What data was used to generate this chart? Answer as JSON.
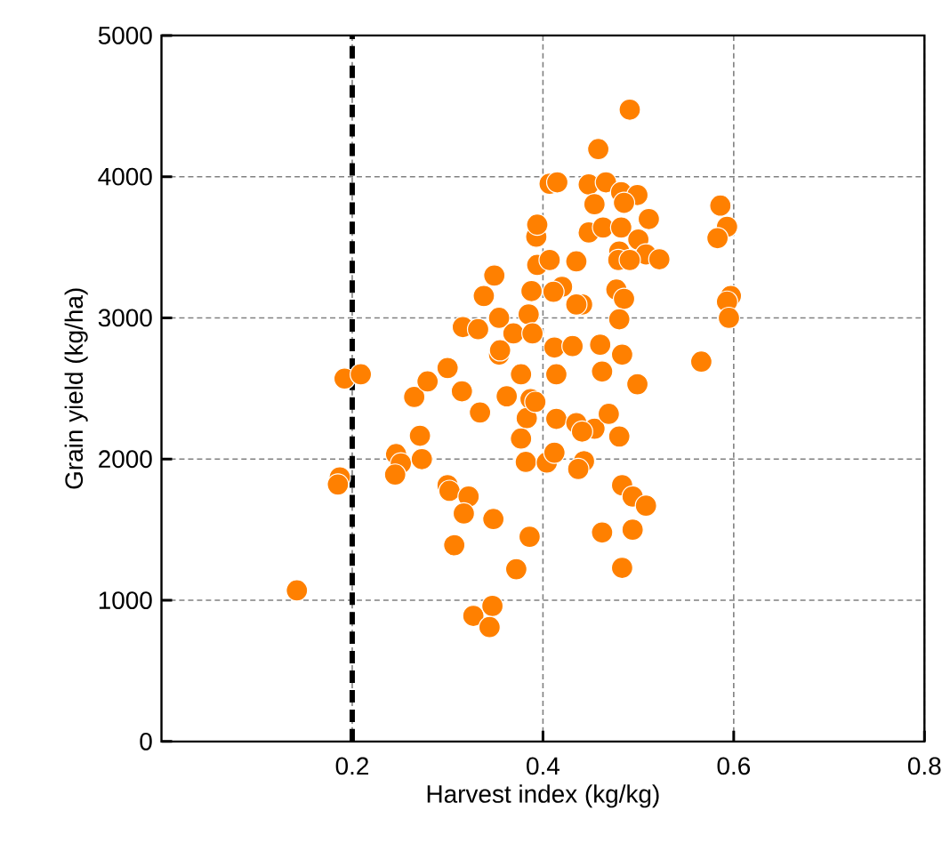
{
  "chart_data": {
    "type": "scatter",
    "xlabel": "Harvest index (kg/kg)",
    "ylabel": "Grain yield (kg/ha)",
    "xlim": [
      0,
      0.8
    ],
    "ylim": [
      0,
      5000
    ],
    "xticks": [
      0.2,
      0.4,
      0.6,
      0.8
    ],
    "yticks": [
      0,
      1000,
      2000,
      3000,
      4000,
      5000
    ],
    "grid": true,
    "marker": "circle",
    "ref_lines": [
      {
        "axis": "x",
        "value": 0.2,
        "color": "#000000",
        "line_style": "dashed"
      }
    ],
    "series": [
      {
        "color": "#ff8000",
        "x": [
          0.142,
          0.187,
          0.185,
          0.192,
          0.209,
          0.246,
          0.251,
          0.245,
          0.271,
          0.273,
          0.265,
          0.279,
          0.3,
          0.315,
          0.334,
          0.3,
          0.302,
          0.322,
          0.317,
          0.348,
          0.307,
          0.386,
          0.372,
          0.327,
          0.347,
          0.344,
          0.362,
          0.377,
          0.387,
          0.383,
          0.377,
          0.382,
          0.404,
          0.354,
          0.349,
          0.338,
          0.316,
          0.332,
          0.354,
          0.355,
          0.369,
          0.385,
          0.389,
          0.388,
          0.394,
          0.393,
          0.394,
          0.407,
          0.491,
          0.458,
          0.415,
          0.448,
          0.466,
          0.454,
          0.482,
          0.499,
          0.485,
          0.511,
          0.448,
          0.463,
          0.482,
          0.5,
          0.48,
          0.479,
          0.508,
          0.522,
          0.491,
          0.435,
          0.407,
          0.586,
          0.593,
          0.583,
          0.597,
          0.593,
          0.595,
          0.477,
          0.485,
          0.48,
          0.441,
          0.435,
          0.42,
          0.411,
          0.566,
          0.412,
          0.431,
          0.46,
          0.483,
          0.414,
          0.462,
          0.499,
          0.414,
          0.435,
          0.454,
          0.469,
          0.48,
          0.441,
          0.392,
          0.412,
          0.443,
          0.437,
          0.483,
          0.494,
          0.508,
          0.462,
          0.494,
          0.483
        ],
        "values": [
          1070,
          1870,
          1820,
          2570,
          2600,
          2035,
          1970,
          1890,
          2165,
          2000,
          2440,
          2550,
          2645,
          2480,
          2330,
          1815,
          1775,
          1735,
          1615,
          1575,
          1390,
          1450,
          1220,
          890,
          960,
          810,
          2445,
          2600,
          2425,
          2290,
          2145,
          1980,
          1975,
          2740,
          3300,
          3155,
          2935,
          2920,
          3000,
          2770,
          2890,
          3025,
          2890,
          3190,
          3375,
          3575,
          3660,
          3950,
          4475,
          4195,
          3960,
          3945,
          3960,
          3805,
          3890,
          3870,
          3815,
          3700,
          3605,
          3640,
          3640,
          3555,
          3470,
          3410,
          3450,
          3415,
          3410,
          3400,
          3410,
          3795,
          3645,
          3565,
          3155,
          3115,
          3000,
          3200,
          3135,
          2990,
          3095,
          3095,
          3220,
          3185,
          2690,
          2790,
          2800,
          2810,
          2740,
          2600,
          2620,
          2530,
          2285,
          2255,
          2215,
          2320,
          2160,
          2195,
          2405,
          2045,
          1985,
          1930,
          1815,
          1735,
          1670,
          1480,
          1500,
          1230
        ]
      }
    ]
  }
}
